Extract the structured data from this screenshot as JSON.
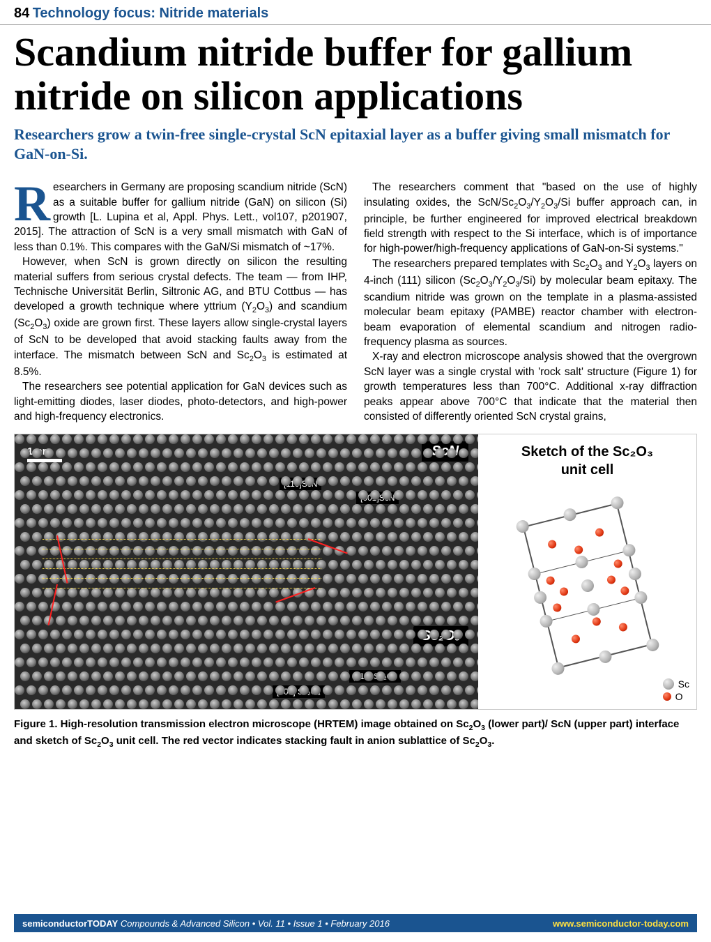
{
  "header": {
    "page_number": "84",
    "section": "Technology focus: Nitride materials"
  },
  "article": {
    "title": "Scandium nitride buffer for gallium nitride on silicon applications",
    "subtitle": "Researchers grow a twin-free single-crystal ScN epitaxial layer as a buffer giving small mismatch for GaN-on-Si.",
    "drop_cap": "R",
    "p1": "esearchers in Germany are proposing scandium nitride (ScN) as a suitable buffer for gallium nitride (GaN) on silicon (Si) growth [L. Lupina et al, Appl. Phys. Lett., vol107, p201907, 2015]. The attraction of ScN is a very small mismatch with GaN of less than 0.1%. This compares with the GaN/Si mismatch of ~17%.",
    "p2_pre": "However, when ScN is grown directly on silicon the resulting material suffers from serious crystal defects. The team — from IHP, Technische Universität Berlin, Siltronic AG, and BTU Cottbus — has developed a growth technique where yttrium (Y",
    "p2_mid1": ") and scandium (Sc",
    "p2_mid2": ") oxide are grown first. These layers allow single-crystal layers of ScN to be developed that avoid stacking faults away from the interface. The mismatch between ScN and Sc",
    "p2_post": " is estimated at 8.5%.",
    "p3": "The researchers see potential application for GaN devices such as light-emitting diodes, laser diodes, photo-detectors, and high-power and high-frequency electronics.",
    "p4_pre": "The researchers comment that \"based on the use of highly insulating oxides, the ScN/Sc",
    "p4_mid": "/Y",
    "p4_post": "/Si buffer approach can, in principle, be further engineered for improved electrical breakdown field strength with respect to the Si interface, which is of importance for high-power/high-frequency applications of GaN-on-Si systems.\"",
    "p5_pre": "The researchers prepared templates with Sc",
    "p5_mid1": " and Y",
    "p5_mid2": " layers on 4-inch (111) silicon (Sc",
    "p5_mid3": "/Y",
    "p5_post": "/Si) by molecular beam epitaxy. The scandium nitride was grown on the template in a plasma-assisted molecular beam epitaxy (PAMBE) reactor chamber with electron-beam evaporation of elemental scandium and nitrogen radio-frequency plasma as sources.",
    "p6": "X-ray and electron microscope analysis showed that the overgrown ScN layer was a single crystal with 'rock salt' structure (Figure 1) for growth temperatures less than 700°C. Additional x-ray diffraction peaks appear above 700°C that indicate that the material then consisted of differently oriented ScN crystal grains,"
  },
  "figure": {
    "hrtem": {
      "scale_label": "1 nm",
      "top_material": "ScN",
      "bottom_material": "Sc₂O₃",
      "dir_110_scn": "[110]ScN",
      "dir_001_scn": "[001]ScN",
      "dir_110_sc2o3": "[110] Sc₂O₃",
      "dir_001_sc2o3": "[001] Sc₂O₃",
      "atom_rows": 20,
      "dots_per_row": 42,
      "background_color": "#2a2a2a",
      "fault_line_color": "#ff2020",
      "lattice_line_color": "#ffe040"
    },
    "sketch": {
      "title_line1": "Sketch of the Sc₂O₃",
      "title_line2": "unit cell",
      "legend_sc": "Sc",
      "legend_o": "O",
      "sc_color": "#b8b8b8",
      "o_color": "#e03510",
      "edge_color": "#555555",
      "rotation_deg": -14
    },
    "caption_pre": "Figure 1. High-resolution transmission electron microscope (HRTEM) image obtained on Sc",
    "caption_mid1": " (lower part)/ ScN (upper part) interface and sketch of Sc",
    "caption_mid2": " unit cell. The red vector indicates stacking fault in anion sublattice of Sc",
    "caption_post": "."
  },
  "footer": {
    "magazine": "semiconductorTODAY",
    "tagline": " Compounds & Advanced Silicon",
    "issue": " • Vol. 11 • Issue 1 • February 2016",
    "url": "www.semiconductor-today.com"
  },
  "colors": {
    "brand_blue": "#1a5490",
    "accent_yellow": "#ffe040"
  }
}
